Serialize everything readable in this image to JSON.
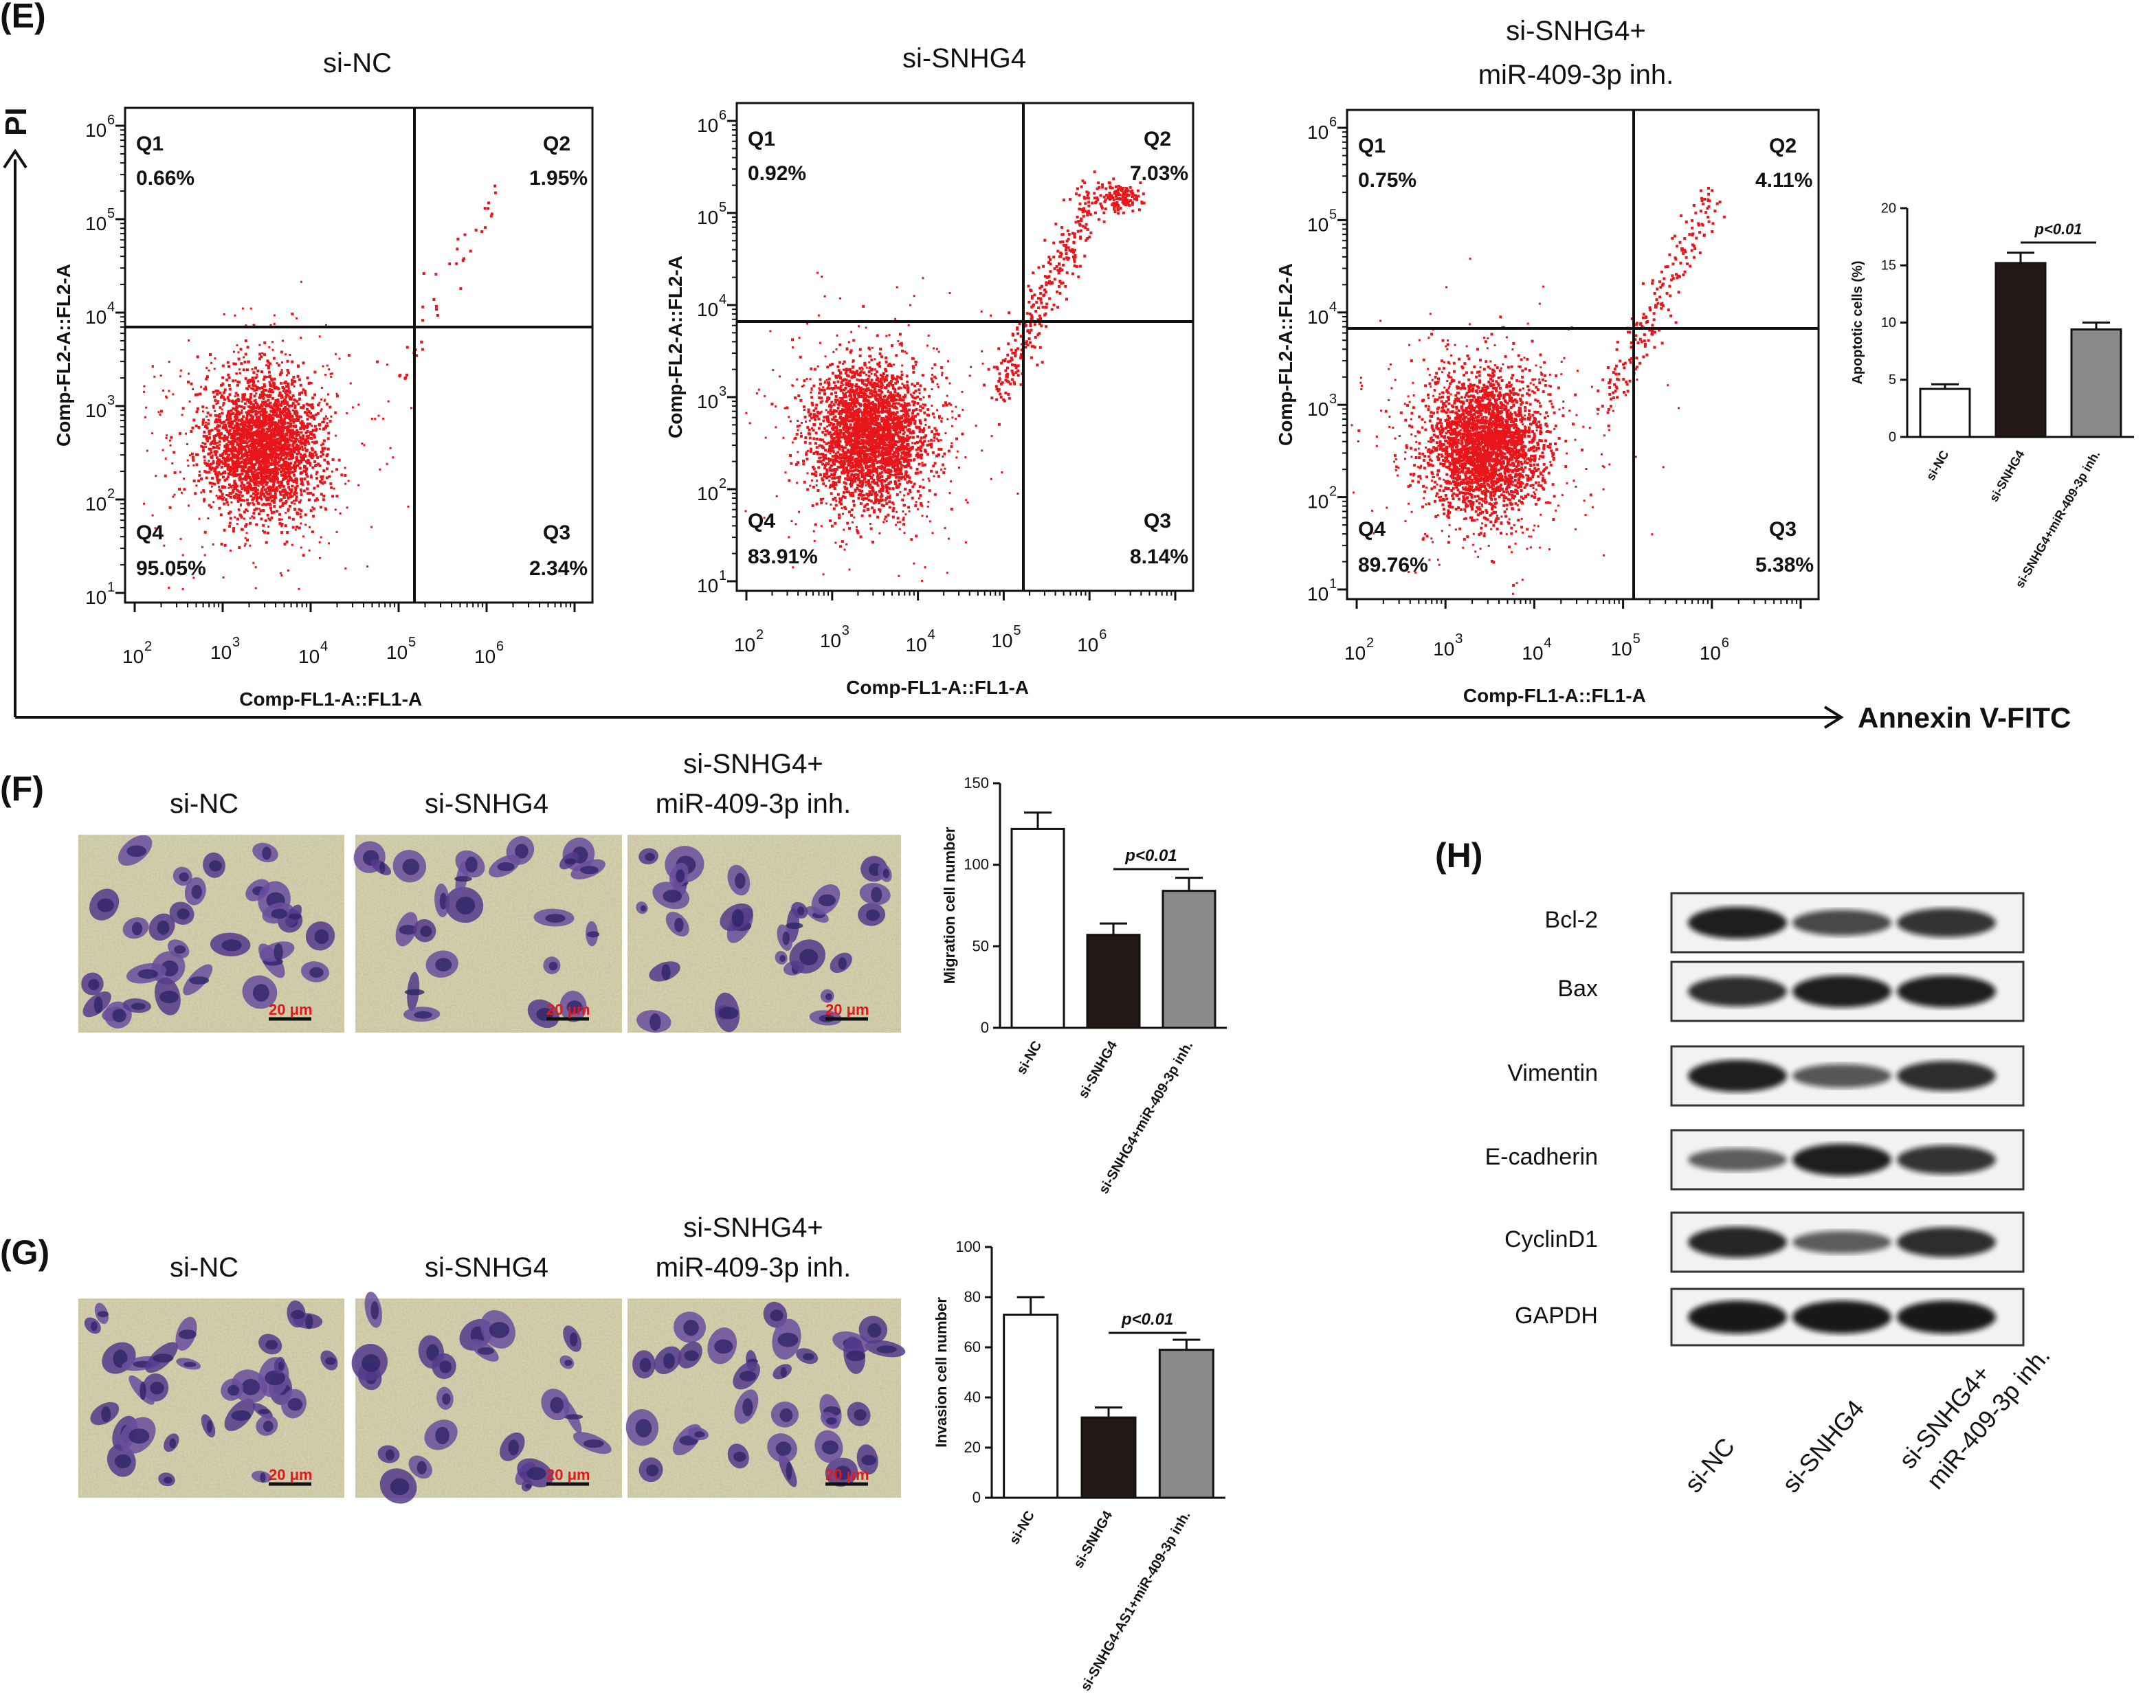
{
  "panel_E": {
    "label": "(E)",
    "y_axis_label": "PI",
    "x_axis_label": "Annexin V-FITC",
    "plots": [
      {
        "title_lines": [
          "si-NC"
        ],
        "q1": "0.66%",
        "q2": "1.95%",
        "q3": "2.34%",
        "q4": "95.05%"
      },
      {
        "title_lines": [
          "si-SNHG4"
        ],
        "q1": "0.92%",
        "q2": "7.03%",
        "q3": "8.14%",
        "q4": "83.91%"
      },
      {
        "title_lines": [
          "si-SNHG4+",
          "miR-409-3p inh."
        ],
        "q1": "0.75%",
        "q2": "4.11%",
        "q3": "5.38%",
        "q4": "89.76%"
      }
    ],
    "quadrant_names": [
      "Q1",
      "Q2",
      "Q3",
      "Q4"
    ],
    "flow_ylabel": "Comp-FL2-A::FL2-A",
    "flow_xlabel": "Comp-FL1-A::FL1-A",
    "decade_exponents_y": [
      "1",
      "2",
      "3",
      "4",
      "5",
      "6"
    ],
    "decade_exponents_x": [
      "2",
      "3",
      "4",
      "5",
      "6"
    ],
    "decade_base": "10",
    "dot_color": "#e8161b"
  },
  "panel_F": {
    "label": "(F)",
    "image_titles": [
      [
        "si-NC"
      ],
      [
        "si-SNHG4"
      ],
      [
        "si-SNHG4+",
        "miR-409-3p inh."
      ]
    ],
    "scale_bar": "20 μm"
  },
  "panel_G": {
    "label": "(G)",
    "image_titles": [
      [
        "si-NC"
      ],
      [
        "si-SNHG4"
      ],
      [
        "si-SNHG4+",
        "miR-409-3p inh."
      ]
    ],
    "scale_bar": "20 μm"
  },
  "panel_H": {
    "label": "(H)",
    "proteins": [
      "Bcl-2",
      "Bax",
      "Vimentin",
      "E-cadherin",
      "CyclinD1",
      "GAPDH"
    ],
    "lanes": [
      [
        "si-NC"
      ],
      [
        "si-SNHG4"
      ],
      [
        "si-SNHG4+",
        "miR-409-3p inh."
      ]
    ],
    "band_intensity": [
      [
        0.95,
        0.65,
        0.8
      ],
      [
        0.85,
        0.95,
        0.95
      ],
      [
        0.95,
        0.55,
        0.85
      ],
      [
        0.5,
        0.95,
        0.8
      ],
      [
        0.9,
        0.5,
        0.85
      ],
      [
        1.0,
        1.0,
        1.0
      ]
    ]
  },
  "chart_data": [
    {
      "type": "bar",
      "panel": "E",
      "categories": [
        "si-NC",
        "si-SNHG4",
        "si-SNHG4+miR-409-3p inh."
      ],
      "values": [
        4.2,
        15.2,
        9.4
      ],
      "errors": [
        0.4,
        0.9,
        0.6
      ],
      "ylabel": "Apoptotic cells (%)",
      "ylim": [
        0,
        20
      ],
      "yticks": [
        0,
        5,
        10,
        15,
        20
      ],
      "annotation": "p<0.01",
      "bar_colors": [
        "#ffffff",
        "#231815",
        "#8a8a8a"
      ]
    },
    {
      "type": "bar",
      "panel": "F",
      "categories": [
        "si-NC",
        "si-SNHG4",
        "si-SNHG4+miR-409-3p inh."
      ],
      "values": [
        122,
        57,
        84
      ],
      "errors": [
        10,
        7,
        8
      ],
      "ylabel": "Migration cell number",
      "ylim": [
        0,
        150
      ],
      "yticks": [
        0,
        50,
        100,
        150
      ],
      "annotation": "p<0.01",
      "bar_colors": [
        "#ffffff",
        "#231815",
        "#8a8a8a"
      ]
    },
    {
      "type": "bar",
      "panel": "G",
      "categories": [
        "si-NC",
        "si-SNHG4",
        "si-SNHG4-AS1+miR-409-3p inh."
      ],
      "values": [
        73,
        32,
        59
      ],
      "errors": [
        7,
        4,
        4
      ],
      "ylabel": "Invasion cell number",
      "ylim": [
        0,
        100
      ],
      "yticks": [
        0,
        20,
        40,
        60,
        80,
        100
      ],
      "annotation": "p<0.01",
      "bar_colors": [
        "#ffffff",
        "#231815",
        "#8a8a8a"
      ]
    }
  ]
}
